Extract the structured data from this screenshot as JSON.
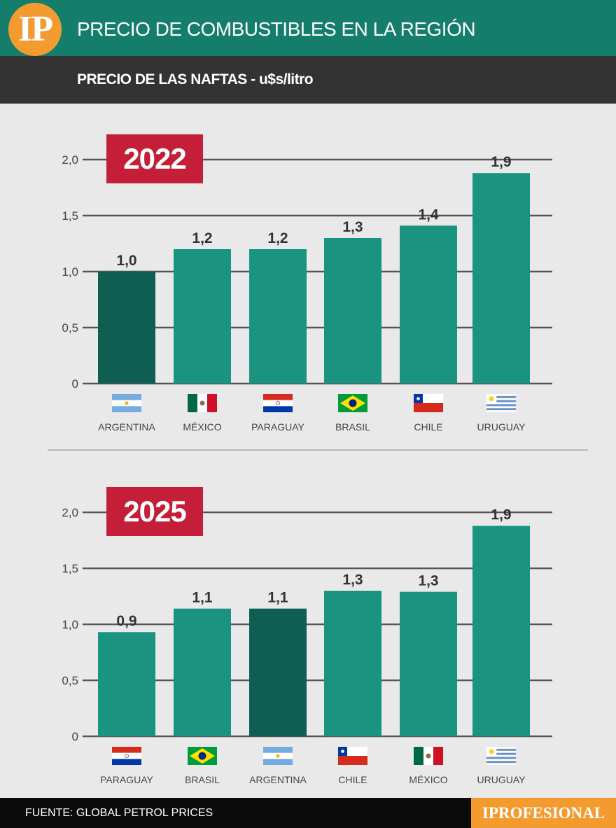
{
  "header": {
    "logo_text": "IP",
    "title": "PRECIO DE COMBUSTIBLES EN LA REGIÓN",
    "subtitle": "PRECIO DE LAS NAFTAS - u$s/litro"
  },
  "colors": {
    "teal": "#1a9381",
    "teal_dark": "#0e5f52",
    "header_teal": "#157d6b",
    "red": "#c41e38",
    "orange": "#f49b2f",
    "grid": "#555555"
  },
  "chart_data": [
    {
      "type": "bar",
      "title": "2022",
      "categories": [
        "ARGENTINA",
        "MÉXICO",
        "PARAGUAY",
        "BRASIL",
        "CHILE",
        "URUGUAY"
      ],
      "values": [
        1.0,
        1.2,
        1.2,
        1.3,
        1.41,
        1.88
      ],
      "value_labels": [
        "1,0",
        "1,2",
        "1,2",
        "1,3",
        "1,4",
        "1,9"
      ],
      "highlight": "ARGENTINA",
      "yticks": [
        "0",
        "0,5",
        "1,0",
        "1,5",
        "2,0"
      ],
      "ylim": [
        0,
        2.0
      ],
      "xlabel": "",
      "ylabel": ""
    },
    {
      "type": "bar",
      "title": "2025",
      "categories": [
        "PARAGUAY",
        "BRASIL",
        "ARGENTINA",
        "CHILE",
        "MÉXICO",
        "URUGUAY"
      ],
      "values": [
        0.93,
        1.14,
        1.14,
        1.3,
        1.29,
        1.88
      ],
      "value_labels": [
        "0,9",
        "1,1",
        "1,1",
        "1,3",
        "1,3",
        "1,9"
      ],
      "highlight": "ARGENTINA",
      "yticks": [
        "0",
        "0,5",
        "1,0",
        "1,5",
        "2,0"
      ],
      "ylim": [
        0,
        2.0
      ],
      "xlabel": "",
      "ylabel": ""
    }
  ],
  "footer": {
    "source": "FUENTE: GLOBAL PETROL PRICES",
    "brand": "IPROFESIONAL"
  }
}
